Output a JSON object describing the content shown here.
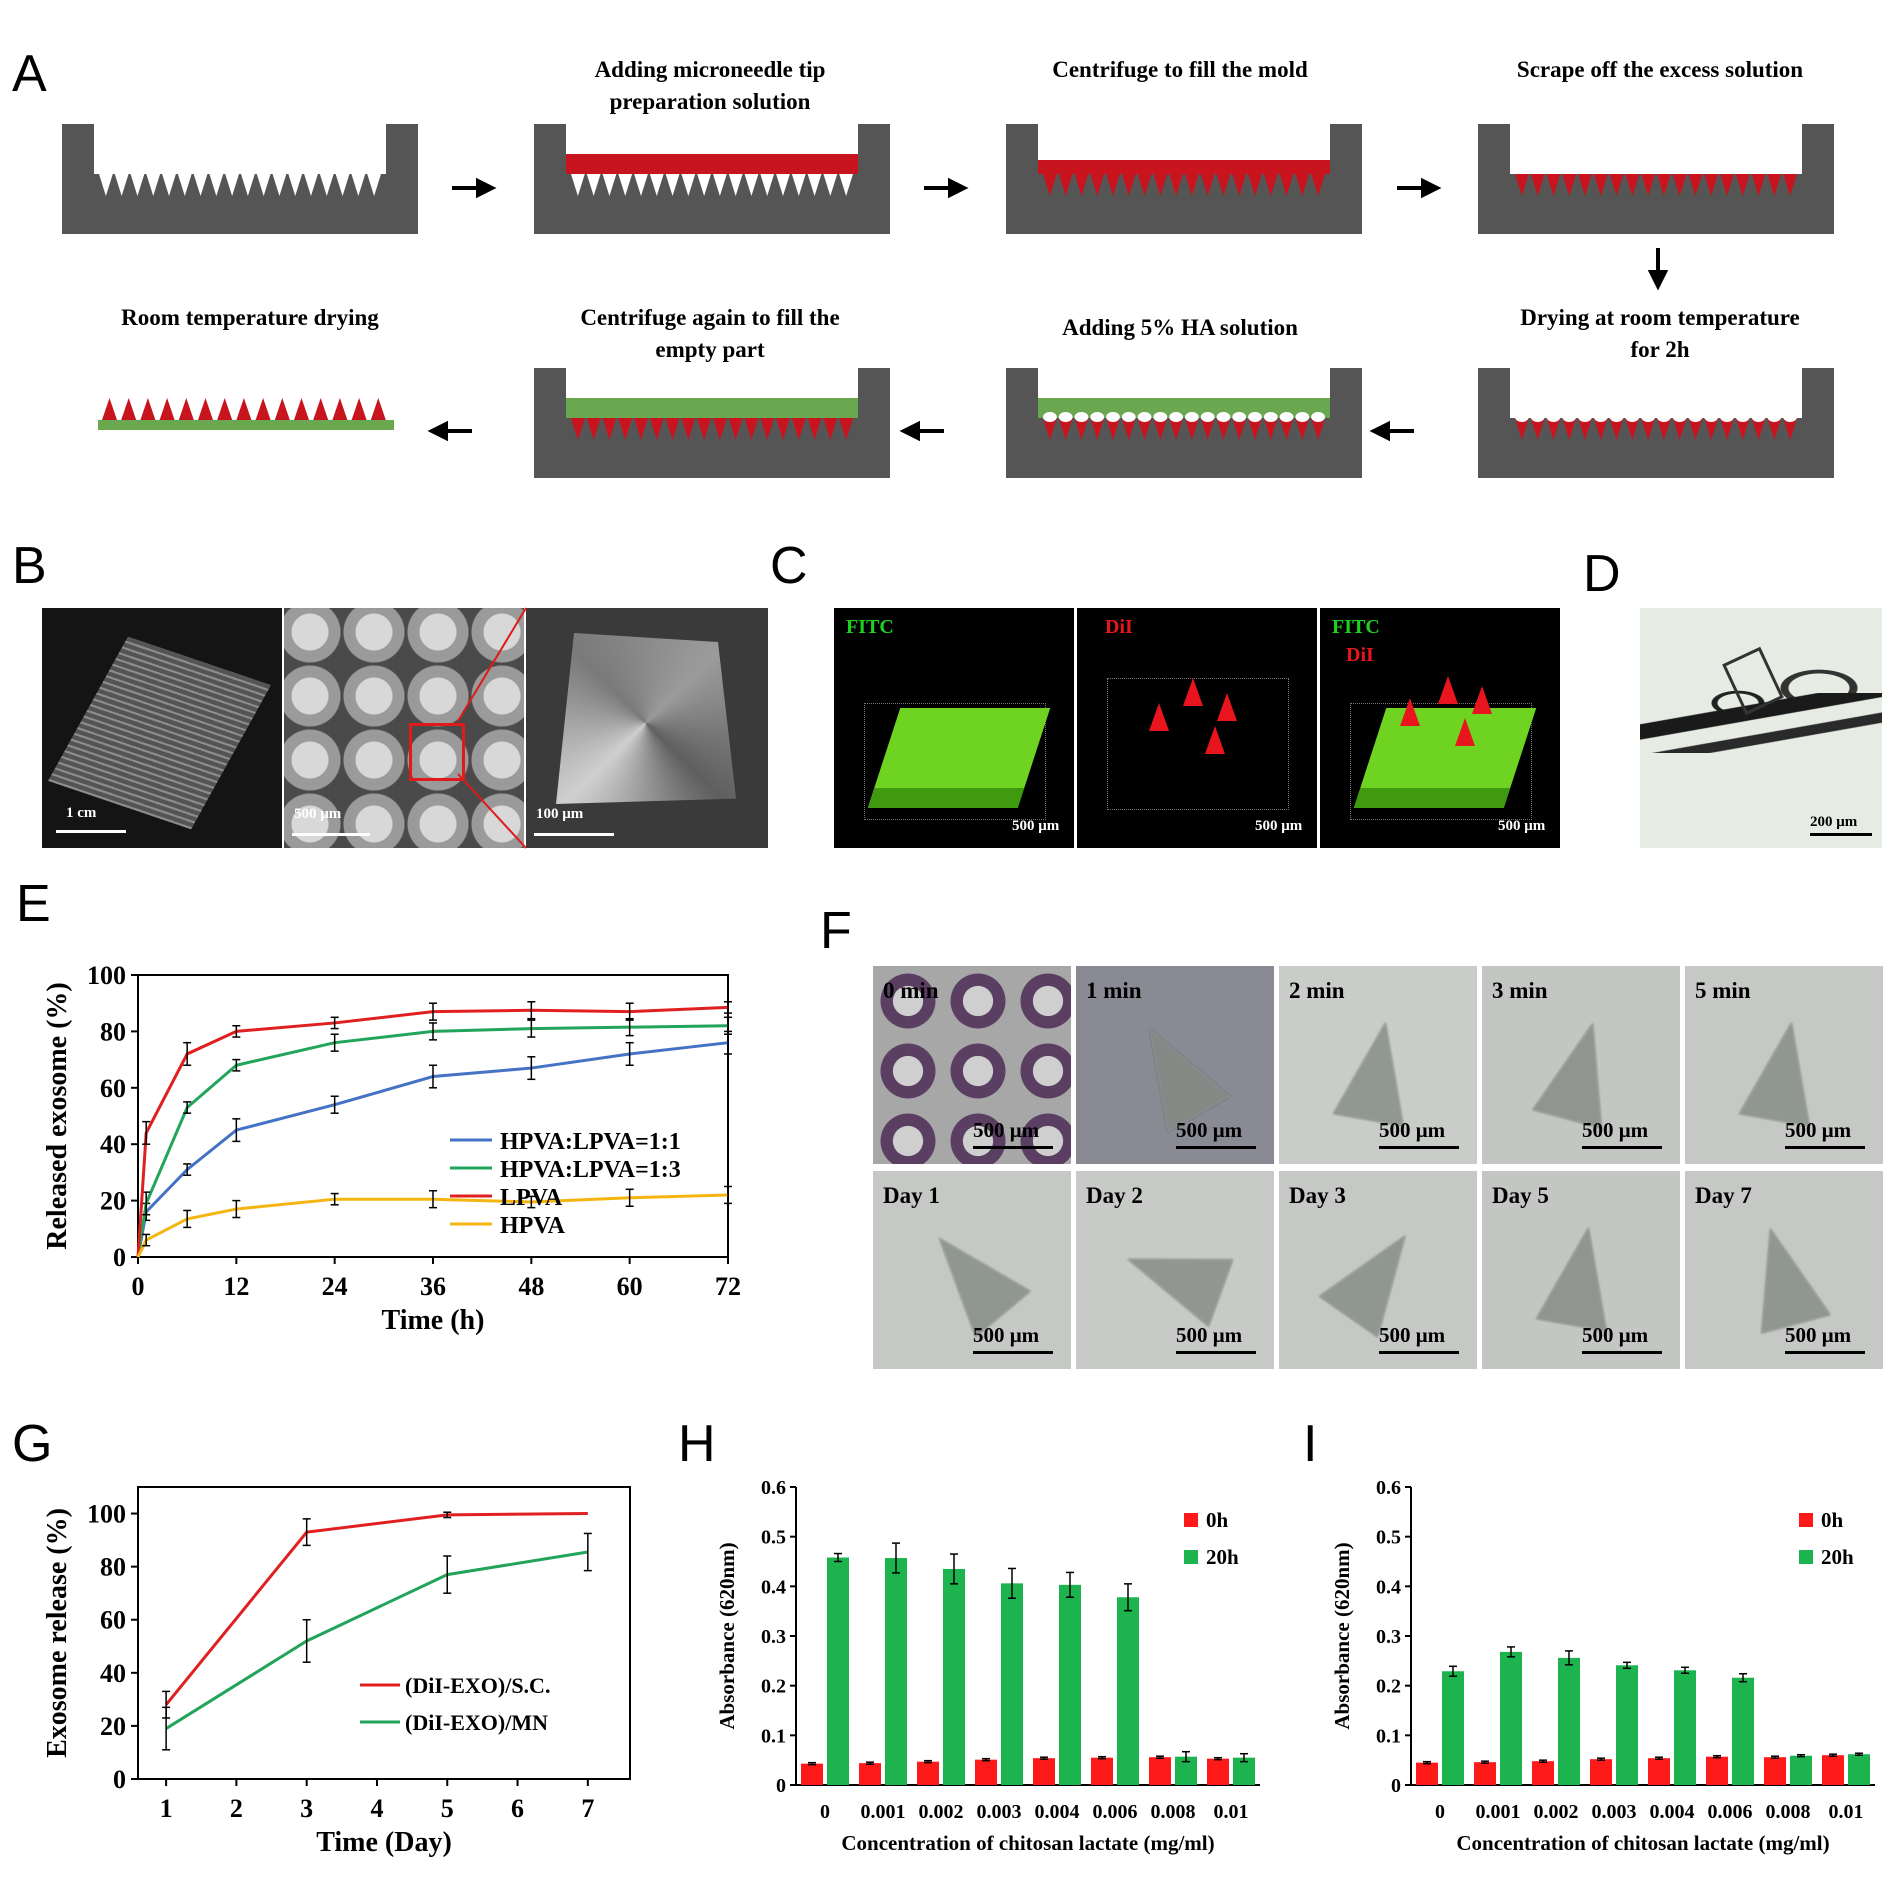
{
  "panel_labels": {
    "A": "A",
    "B": "B",
    "C": "C",
    "D": "D",
    "E": "E",
    "F": "F",
    "G": "G",
    "H": "H",
    "I": "I"
  },
  "panel_a": {
    "steps": [
      "Adding microneedle tip preparation solution",
      "Centrifuge to fill the mold",
      "Scrape off the excess solution",
      "Drying at room temperature for 2h",
      "Adding 5% HA solution",
      "Centrifuge again to fill the empty part",
      "Room temperature drying"
    ],
    "colors": {
      "mold": "#555555",
      "tip_solution": "#c8141e",
      "ha_solution": "#6aa84f"
    }
  },
  "panel_b": {
    "scale_bars": [
      "1 cm",
      "500 μm",
      "100 μm"
    ]
  },
  "panel_c": {
    "labels": {
      "fitc": "FITC",
      "dil": "DiI"
    },
    "scale_bar": "500 μm"
  },
  "panel_d": {
    "scale_bar": "200 μm"
  },
  "panel_f": {
    "minutes": [
      "0 min",
      "1 min",
      "2 min",
      "3 min",
      "5 min"
    ],
    "days": [
      "Day 1",
      "Day 2",
      "Day 3",
      "Day 5",
      "Day 7"
    ],
    "scale_bar": "500 μm"
  },
  "chart_data": [
    {
      "id": "E",
      "type": "line",
      "xlabel": "Time (h)",
      "ylabel": "Released exosome (%)",
      "xlim": [
        0,
        72
      ],
      "ylim": [
        0,
        100
      ],
      "xticks": [
        0,
        12,
        24,
        36,
        48,
        60,
        72
      ],
      "yticks": [
        0,
        20,
        40,
        60,
        80,
        100
      ],
      "x": [
        0,
        1,
        6,
        12,
        24,
        36,
        48,
        60,
        72
      ],
      "legend_position": "center-right",
      "series": [
        {
          "name": "HPVA:LPVA=1:1",
          "color": "#4472c4",
          "values": [
            0,
            16,
            31,
            45,
            54,
            64,
            67,
            72,
            76
          ],
          "errors": [
            0,
            3,
            2,
            4,
            3,
            4,
            4,
            4,
            4
          ]
        },
        {
          "name": "HPVA:LPVA=1:3",
          "color": "#22a55a",
          "values": [
            0,
            19,
            53,
            68,
            76,
            80,
            81,
            81.5,
            82
          ],
          "errors": [
            0,
            4,
            2,
            2,
            3,
            3,
            3,
            3,
            3
          ]
        },
        {
          "name": "LPVA",
          "color": "#e02020",
          "values": [
            0,
            44,
            72,
            80,
            83,
            87,
            87.5,
            87,
            88.5
          ],
          "errors": [
            0,
            4,
            4,
            2,
            2,
            3,
            3,
            3,
            2
          ]
        },
        {
          "name": "HPVA",
          "color": "#f5b50f",
          "values": [
            0,
            6,
            13.5,
            17,
            20.5,
            20.5,
            19.5,
            21,
            22
          ],
          "errors": [
            0,
            2,
            3,
            3,
            2,
            3,
            2,
            3,
            3
          ]
        }
      ]
    },
    {
      "id": "G",
      "type": "line",
      "xlabel": "Time (Day)",
      "ylabel": "Exosome release (%)",
      "xlim": [
        0.6,
        7.6
      ],
      "ylim": [
        0,
        110
      ],
      "xticks": [
        1,
        2,
        3,
        4,
        5,
        6,
        7
      ],
      "yticks": [
        0,
        20,
        40,
        60,
        80,
        100
      ],
      "legend_position": "right",
      "series": [
        {
          "name": "(DiI-EXO)/S.C.",
          "color": "#e02020",
          "x": [
            1,
            3,
            5,
            7
          ],
          "values": [
            28,
            93,
            99.5,
            100
          ],
          "errors": [
            5,
            5,
            1,
            0
          ]
        },
        {
          "name": "(DiI-EXO)/MN",
          "color": "#22a55a",
          "x": [
            1,
            3,
            5,
            7
          ],
          "values": [
            19,
            52,
            77,
            85.5
          ],
          "errors": [
            8,
            8,
            7,
            7
          ]
        }
      ]
    },
    {
      "id": "H",
      "type": "bar",
      "xlabel": "Concentration of chitosan lactate (mg/ml)",
      "ylabel": "Absorbance (620nm)",
      "ylim": [
        0,
        0.6
      ],
      "yticks": [
        "0",
        "0.1",
        "0.2",
        "0.3",
        "0.4",
        "0.5",
        "0.6"
      ],
      "categories": [
        "0",
        "0.001",
        "0.002",
        "0.003",
        "0.004",
        "0.006",
        "0.008",
        "0.01"
      ],
      "legend_position": "top-right",
      "series": [
        {
          "name": "0h",
          "color": "#ff1a1a",
          "values": [
            0.043,
            0.044,
            0.047,
            0.051,
            0.054,
            0.055,
            0.056,
            0.053
          ],
          "errors": [
            0.002,
            0.002,
            0.002,
            0.002,
            0.002,
            0.002,
            0.002,
            0.002
          ]
        },
        {
          "name": "20h",
          "color": "#1db34f",
          "values": [
            0.458,
            0.457,
            0.435,
            0.406,
            0.403,
            0.378,
            0.057,
            0.055
          ],
          "errors": [
            0.008,
            0.03,
            0.03,
            0.03,
            0.025,
            0.027,
            0.01,
            0.008
          ]
        }
      ]
    },
    {
      "id": "I",
      "type": "bar",
      "xlabel": "Concentration of chitosan lactate (mg/ml)",
      "ylabel": "Absorbance (620nm)",
      "ylim": [
        0,
        0.6
      ],
      "yticks": [
        "0",
        "0.1",
        "0.2",
        "0.3",
        "0.4",
        "0.5",
        "0.6"
      ],
      "categories": [
        "0",
        "0.001",
        "0.002",
        "0.003",
        "0.004",
        "0.006",
        "0.008",
        "0.01"
      ],
      "legend_position": "top-right",
      "series": [
        {
          "name": "0h",
          "color": "#ff1a1a",
          "values": [
            0.045,
            0.046,
            0.048,
            0.052,
            0.054,
            0.057,
            0.056,
            0.06
          ],
          "errors": [
            0.002,
            0.002,
            0.002,
            0.002,
            0.002,
            0.002,
            0.002,
            0.002
          ]
        },
        {
          "name": "20h",
          "color": "#1db34f",
          "values": [
            0.229,
            0.268,
            0.256,
            0.241,
            0.231,
            0.216,
            0.059,
            0.062
          ],
          "errors": [
            0.01,
            0.01,
            0.014,
            0.006,
            0.006,
            0.008,
            0.002,
            0.002
          ]
        }
      ]
    }
  ]
}
